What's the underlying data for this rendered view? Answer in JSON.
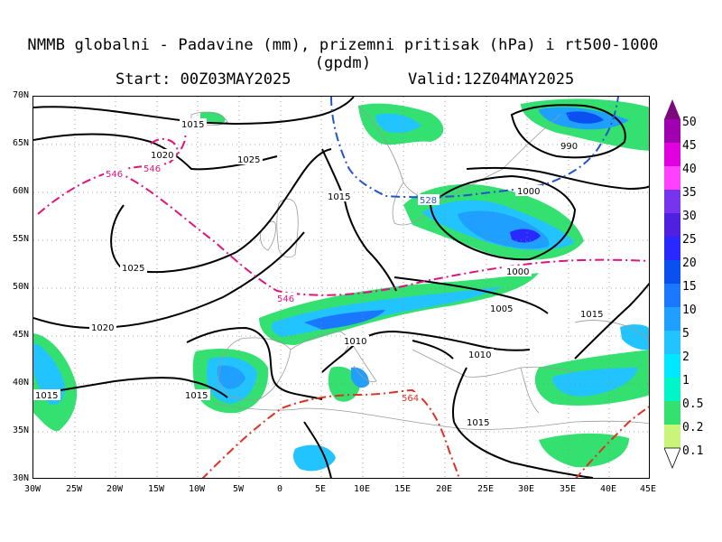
{
  "title": "NMMB globalni - Padavine (mm), prizemni pritisak (hPa) i rt500-1000 (gpdm)",
  "start": "Start: 00Z03MAY2025",
  "valid": "Valid:12Z04MAY2025",
  "map": {
    "lat_labels": [
      "70N",
      "65N",
      "60N",
      "55N",
      "50N",
      "45N",
      "40N",
      "35N",
      "30N"
    ],
    "lon_labels": [
      "30W",
      "25W",
      "20W",
      "15W",
      "10W",
      "5W",
      "0",
      "5E",
      "10E",
      "15E",
      "20E",
      "25E",
      "30E",
      "35E",
      "40E",
      "45E"
    ],
    "isobar_labels": [
      "1015",
      "1020",
      "1025",
      "1025",
      "1020",
      "1015",
      "1015",
      "1010",
      "1010",
      "1005",
      "1000",
      "1000",
      "990",
      "1015",
      "1015",
      "1015"
    ],
    "thickness_labels": [
      "546",
      "546",
      "546",
      "528",
      "564"
    ],
    "colors": {
      "isobar": "#000000",
      "thickness_546": "#e0147a",
      "thickness_528": "#2255cc",
      "thickness_564": "#e03020",
      "coast": "#9a9a9a",
      "grid": "#8a8a8a"
    }
  },
  "colorbar": {
    "levels": [
      "50",
      "45",
      "40",
      "35",
      "30",
      "25",
      "20",
      "15",
      "10",
      "5",
      "2",
      "1",
      "0.5",
      "0.2",
      "0.1"
    ],
    "colors": [
      "#7a087a",
      "#a000b0",
      "#e000e0",
      "#ff40ff",
      "#7733ee",
      "#5020e0",
      "#2828ff",
      "#0a50f0",
      "#1a78ff",
      "#1f9fff",
      "#22c4ff",
      "#00e8ff",
      "#00f5c8",
      "#33e070",
      "#c8f57a"
    ]
  }
}
